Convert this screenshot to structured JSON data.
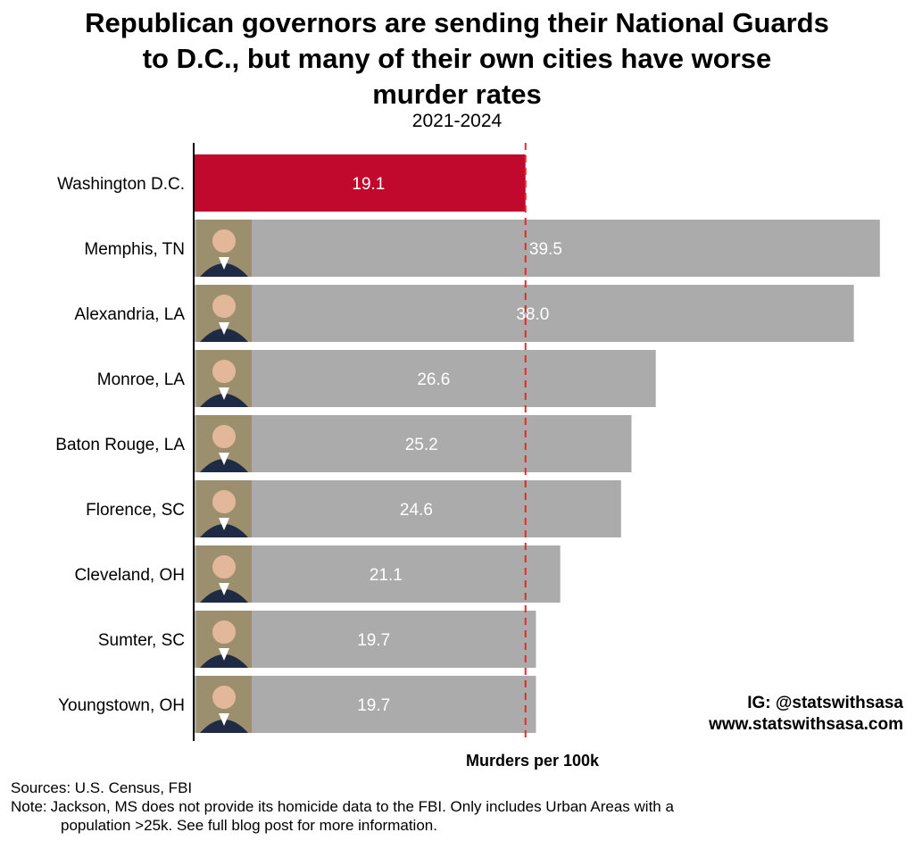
{
  "chart_data": {
    "type": "bar",
    "orientation": "horizontal",
    "title_lines": [
      "Republican governors are sending their National Guards",
      "to D.C., but many of their own cities have worse",
      "murder rates"
    ],
    "subtitle": "2021-2024",
    "xlabel": "Murders per 100k",
    "ylabel": "",
    "xlim": [
      0,
      41
    ],
    "reference_line": {
      "value": 19.1,
      "style": "dashed",
      "color": "#e8282b"
    },
    "grid": false,
    "categories": [
      "Washington D.C.",
      "Memphis, TN",
      "Alexandria, LA",
      "Monroe, LA",
      "Baton Rouge, LA",
      "Florence, SC",
      "Cleveland, OH",
      "Sumter, SC",
      "Youngstown, OH"
    ],
    "values": [
      19.1,
      39.5,
      38.0,
      26.6,
      25.2,
      24.6,
      21.1,
      19.7,
      19.7
    ],
    "value_labels": [
      "19.1",
      "39.5",
      "38.0",
      "26.6",
      "25.2",
      "24.6",
      "21.1",
      "19.7",
      "19.7"
    ],
    "colors": {
      "highlight": "#c0092c",
      "default": "#ababab",
      "value_label": "#ffffff",
      "axis": "#000000"
    },
    "highlight_index": 0,
    "governor_photo_rows": [
      1,
      2,
      3,
      4,
      5,
      6,
      7,
      8
    ]
  },
  "watermark": {
    "line1": "IG: @statswithsasa",
    "line2": "www.statswithsasa.com"
  },
  "footer": {
    "sources": "Sources: U.S. Census, FBI",
    "note_label": "Note:",
    "note_line1": "Jackson, MS does not provide its homicide data to the FBI. Only includes Urban Areas with a",
    "note_line2": "population >25k. See full blog post for more information."
  }
}
